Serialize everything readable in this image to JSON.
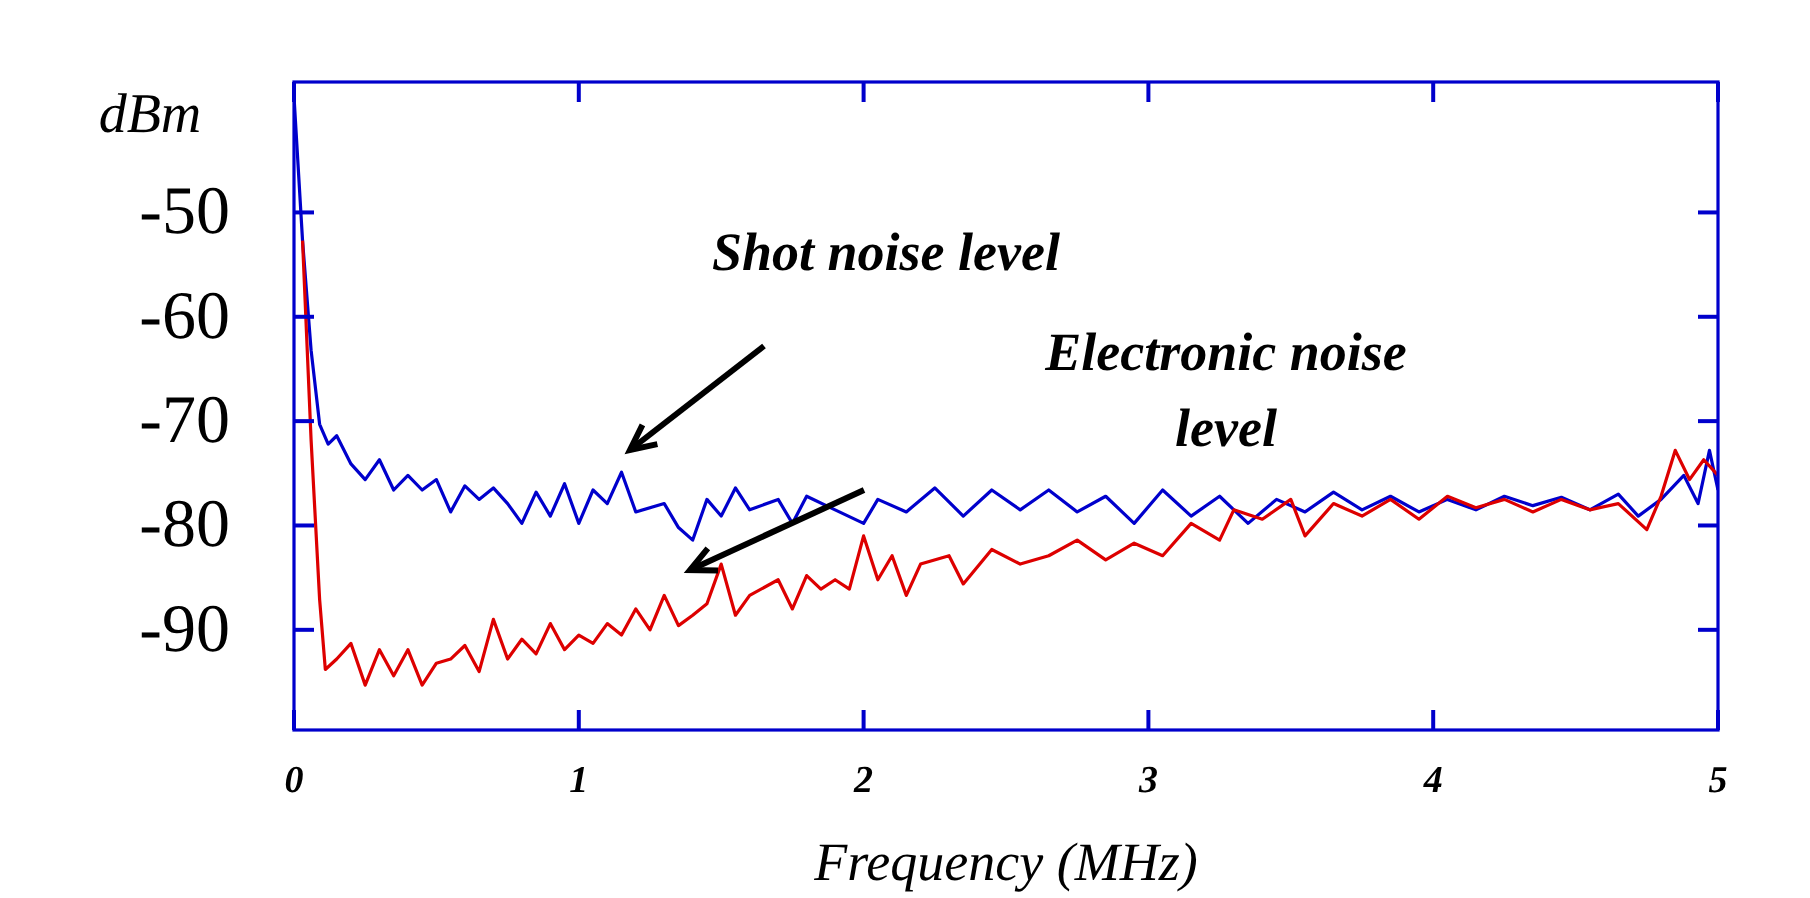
{
  "chart_data": {
    "type": "line",
    "ylabel": "dBm",
    "xlabel": "Frequency (MHz)",
    "xlim": [
      0,
      5
    ],
    "xticks": [
      0,
      1,
      2,
      3,
      4,
      5
    ],
    "ylim": [
      -99.6,
      -37.5
    ],
    "yticks": [
      -50,
      -60,
      -70,
      -80,
      -90
    ],
    "grid": false,
    "line_style": "solid",
    "annotations": [
      "Shot noise level",
      "Electronic noise\nlevel"
    ],
    "series": [
      {
        "color": "#0000cc",
        "x": [
          0,
          0.03,
          0.06,
          0.09,
          0.12,
          0.15,
          0.2,
          0.25,
          0.3,
          0.35,
          0.4,
          0.45,
          0.5,
          0.55,
          0.6,
          0.65,
          0.7,
          0.75,
          0.8,
          0.85,
          0.9,
          0.95,
          1.0,
          1.05,
          1.1,
          1.15,
          1.2,
          1.3,
          1.35,
          1.4,
          1.45,
          1.5,
          1.55,
          1.6,
          1.7,
          1.75,
          1.8,
          1.9,
          2.0,
          2.05,
          2.15,
          2.25,
          2.35,
          2.45,
          2.55,
          2.65,
          2.75,
          2.85,
          2.95,
          3.05,
          3.15,
          3.25,
          3.35,
          3.45,
          3.55,
          3.65,
          3.75,
          3.85,
          3.95,
          4.05,
          4.15,
          4.25,
          4.35,
          4.45,
          4.55,
          4.65,
          4.72,
          4.8,
          4.88,
          4.93,
          4.97,
          5.0
        ],
        "values": [
          -38.9,
          -52.7,
          -63.2,
          -70.3,
          -72.2,
          -71.4,
          -74.1,
          -75.6,
          -73.7,
          -76.6,
          -75.2,
          -76.6,
          -75.6,
          -78.7,
          -76.2,
          -77.5,
          -76.4,
          -77.9,
          -79.8,
          -76.8,
          -79.1,
          -76.0,
          -79.8,
          -76.6,
          -77.9,
          -74.9,
          -78.7,
          -77.9,
          -80.2,
          -81.4,
          -77.5,
          -79.1,
          -76.4,
          -78.5,
          -77.5,
          -79.8,
          -77.2,
          -78.5,
          -79.8,
          -77.5,
          -78.7,
          -76.4,
          -79.1,
          -76.6,
          -78.5,
          -76.6,
          -78.7,
          -77.2,
          -79.8,
          -76.6,
          -79.1,
          -77.2,
          -79.8,
          -77.5,
          -78.7,
          -76.8,
          -78.5,
          -77.2,
          -78.7,
          -77.5,
          -78.5,
          -77.2,
          -78.1,
          -77.3,
          -78.5,
          -77.0,
          -79.1,
          -77.5,
          -75.2,
          -77.9,
          -72.8,
          -76.6
        ]
      },
      {
        "color": "#dd0000",
        "x": [
          0.03,
          0.06,
          0.09,
          0.11,
          0.15,
          0.2,
          0.25,
          0.3,
          0.35,
          0.4,
          0.45,
          0.5,
          0.55,
          0.6,
          0.65,
          0.7,
          0.75,
          0.8,
          0.85,
          0.9,
          0.95,
          1.0,
          1.05,
          1.1,
          1.15,
          1.2,
          1.25,
          1.3,
          1.35,
          1.4,
          1.45,
          1.5,
          1.55,
          1.6,
          1.7,
          1.75,
          1.8,
          1.85,
          1.9,
          1.95,
          2.0,
          2.05,
          2.1,
          2.15,
          2.2,
          2.3,
          2.35,
          2.45,
          2.55,
          2.65,
          2.75,
          2.85,
          2.95,
          3.05,
          3.15,
          3.25,
          3.3,
          3.4,
          3.5,
          3.55,
          3.65,
          3.75,
          3.85,
          3.95,
          4.05,
          4.15,
          4.25,
          4.35,
          4.45,
          4.55,
          4.65,
          4.75,
          4.8,
          4.85,
          4.9,
          4.95,
          5.0
        ],
        "values": [
          -52.7,
          -71.8,
          -87.1,
          -93.8,
          -92.8,
          -91.3,
          -95.3,
          -91.9,
          -94.4,
          -91.9,
          -95.3,
          -93.2,
          -92.8,
          -91.5,
          -94.0,
          -89.0,
          -92.8,
          -90.9,
          -92.3,
          -89.4,
          -91.9,
          -90.5,
          -91.3,
          -89.4,
          -90.5,
          -88.0,
          -90.0,
          -86.7,
          -89.6,
          -88.6,
          -87.5,
          -83.7,
          -88.6,
          -86.7,
          -85.2,
          -88.0,
          -84.8,
          -86.1,
          -85.2,
          -86.1,
          -81.0,
          -85.2,
          -82.9,
          -86.7,
          -83.7,
          -82.9,
          -85.6,
          -82.3,
          -83.7,
          -82.9,
          -81.4,
          -83.3,
          -81.7,
          -82.9,
          -79.8,
          -81.4,
          -78.5,
          -79.4,
          -77.5,
          -81.0,
          -77.9,
          -79.1,
          -77.5,
          -79.4,
          -77.2,
          -78.3,
          -77.5,
          -78.7,
          -77.5,
          -78.5,
          -77.9,
          -80.4,
          -77.2,
          -72.8,
          -75.6,
          -73.7,
          -75.2
        ]
      }
    ]
  }
}
